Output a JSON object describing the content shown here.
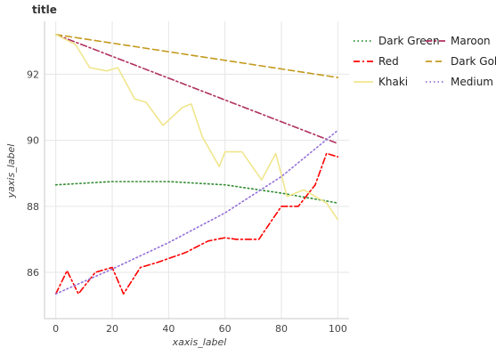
{
  "chart_data": {
    "type": "line",
    "title": "title",
    "xlabel": "xaxis_label",
    "ylabel": "yaxis_label",
    "xlim": [
      -4,
      104
    ],
    "ylim": [
      84.6,
      93.6
    ],
    "x_ticks": [
      0,
      20,
      40,
      60,
      80,
      100
    ],
    "y_ticks": [
      86,
      88,
      90,
      92
    ],
    "grid": true,
    "legend_position": "right",
    "series": [
      {
        "name": "Dark Green",
        "color": "#2e8b2e",
        "dash": "dotted",
        "x": [
          0,
          20,
          40,
          60,
          80,
          100
        ],
        "y": [
          88.65,
          88.75,
          88.75,
          88.65,
          88.4,
          88.1
        ]
      },
      {
        "name": "Maroon",
        "color": "#b03060",
        "dash": "dashdot",
        "x": [
          0,
          100
        ],
        "y": [
          93.2,
          89.9
        ]
      },
      {
        "name": "Dark Gold",
        "color": "#c49a1e",
        "dash": "dashed",
        "x": [
          0,
          100
        ],
        "y": [
          93.2,
          91.9
        ]
      },
      {
        "name": "Khaki",
        "color": "#f0e68c",
        "dash": "solid",
        "x": [
          0,
          7,
          12,
          18,
          22,
          28,
          32,
          38,
          45,
          48,
          52,
          58,
          60,
          66,
          73,
          78,
          82,
          88,
          92,
          96,
          100
        ],
        "y": [
          93.2,
          92.9,
          92.2,
          92.1,
          92.2,
          91.25,
          91.15,
          90.45,
          91.0,
          91.1,
          90.1,
          89.2,
          89.65,
          89.65,
          88.8,
          89.6,
          88.3,
          88.5,
          88.3,
          88.1,
          87.6
        ]
      },
      {
        "name": "Red",
        "color": "#ff0000",
        "dash": "dashdot",
        "x": [
          0,
          4,
          8,
          14,
          20,
          24,
          30,
          36,
          46,
          54,
          60,
          64,
          68,
          72,
          80,
          86,
          92,
          96,
          100
        ],
        "y": [
          85.35,
          86.05,
          85.35,
          86.0,
          86.15,
          85.35,
          86.15,
          86.3,
          86.6,
          86.95,
          87.05,
          87.0,
          87.0,
          87.0,
          88.0,
          88.0,
          88.65,
          89.6,
          89.5
        ]
      },
      {
        "name": "Medium Purple",
        "color": "#9370db",
        "dash": "dotted",
        "x": [
          0,
          20,
          40,
          60,
          80,
          100
        ],
        "y": [
          85.35,
          86.1,
          86.9,
          87.8,
          88.9,
          90.3
        ]
      }
    ]
  }
}
